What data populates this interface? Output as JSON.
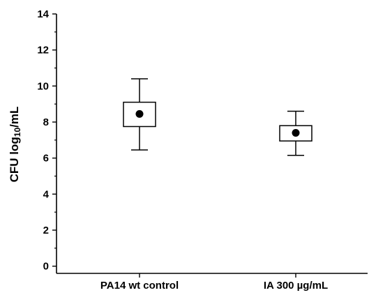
{
  "chart_data": {
    "type": "box",
    "ylabel": {
      "prefix": "CFU log",
      "subscript": "10",
      "suffix": "/mL"
    },
    "ylim": [
      -0.4,
      14
    ],
    "yticks": [
      0,
      2,
      4,
      6,
      8,
      10,
      12,
      14
    ],
    "categories": [
      "PA14 wt control",
      "IA 300 µg/mL"
    ],
    "boxes": [
      {
        "whisker_low": 6.45,
        "q1": 7.75,
        "q3": 9.1,
        "whisker_high": 10.4,
        "mean": 8.45
      },
      {
        "whisker_low": 6.15,
        "q1": 6.95,
        "q3": 7.8,
        "whisker_high": 8.6,
        "mean": 7.4
      }
    ],
    "grid": false,
    "legend": "none",
    "colors": {
      "box": "#000000",
      "mean_marker": "#000000"
    }
  }
}
